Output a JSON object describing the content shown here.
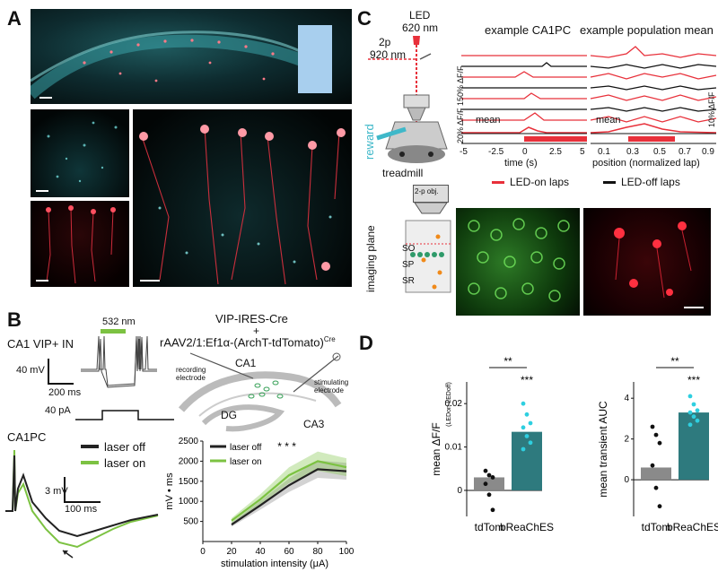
{
  "panels": {
    "a": {
      "letter": "A"
    },
    "b": {
      "letter": "B"
    },
    "c": {
      "letter": "C"
    },
    "d": {
      "letter": "D"
    }
  },
  "panel_b": {
    "trace_title": "CA1 VIP+ IN",
    "light_label": "532 nm",
    "scale_v": "40 mV",
    "scale_t": "200 ms",
    "current_label": "40 pA",
    "construct_line1": "VIP-IRES-Cre",
    "construct_plus": "+",
    "construct_line2": "rAAV2/1:Ef1α-(ArchT-tdTomato)",
    "construct_sup": "Cre",
    "region_ca1": "CA1",
    "region_dg": "DG",
    "region_ca3": "CA3",
    "recording_electrode": "recording electrode",
    "stimulating_electrode": "stimulating electrode",
    "ca1pc_label": "CA1PC",
    "legend": [
      "laser off",
      "laser on"
    ],
    "scale_v2": "3 mV",
    "scale_t2": "100 ms",
    "colors": {
      "off": "#222222",
      "on": "#7cc242"
    }
  },
  "panel_c": {
    "led_label": "LED",
    "led_nm": "620 nm",
    "twop_label": "2p",
    "twop_nm": "920 nm",
    "reward_label": "reward",
    "treadmill_label": "treadmill",
    "objective_label": "2-p obj.",
    "imaging_plane_label": "imaging plane",
    "layers": [
      "SO",
      "SP",
      "SR"
    ],
    "example_ca1pc_title": "example CA1PC",
    "example_pop_title": "example population mean",
    "mean_label": "mean",
    "scale_150": "150% ΔF/F",
    "scale_20": "20% ΔF/F",
    "scale_10": "10% ΔF/F",
    "time_ticks": [
      "-5",
      "-2.5",
      "0",
      "2.5",
      "5"
    ],
    "time_xlabel": "time (s)",
    "pos_ticks": [
      "0.1",
      "0.3",
      "0.5",
      "0.7",
      "0.9"
    ],
    "pos_xlabel": "position (normalized lap)",
    "legend": [
      "LED-on laps",
      "LED-off laps"
    ],
    "colors": {
      "on": "#e8303a",
      "off": "#111111",
      "reward": "#3fb8c9"
    }
  },
  "chart_data": [
    {
      "type": "line",
      "xlabel": "stimulation intensity (μA)",
      "ylabel": "mV • ms",
      "x": [
        20,
        40,
        60,
        80,
        100
      ],
      "xlim": [
        0,
        100
      ],
      "ylim": [
        0,
        2500
      ],
      "xticks": [
        "0",
        "20",
        "40",
        "60",
        "80",
        "100"
      ],
      "yticks": [
        "500",
        "1000",
        "1500",
        "2000",
        "2500"
      ],
      "annotation": "* * *",
      "legend_position": "top-left",
      "series": [
        {
          "name": "laser off",
          "values": [
            420,
            900,
            1400,
            1800,
            1750
          ],
          "color": "#222222"
        },
        {
          "name": "laser on",
          "values": [
            520,
            1050,
            1650,
            2000,
            1850
          ],
          "color": "#7cc242"
        }
      ]
    },
    {
      "type": "bar",
      "ylabel": "mean ΔF/F",
      "ylabel_sub": "(LEDon-LEDoff)",
      "categories": [
        "tdTom",
        "bReaChES"
      ],
      "values": [
        0.003,
        0.0135
      ],
      "ylim": [
        -0.006,
        0.025
      ],
      "yticks": [
        "0",
        "0.01",
        "0.02"
      ],
      "colors": [
        "#8a8a8a",
        "#2e7a7e"
      ],
      "sig_between": "**",
      "sig_single": "***",
      "points": [
        [
          0.0045,
          0.0035,
          0.003,
          0.0015,
          -0.001,
          -0.0045
        ],
        [
          0.02,
          0.0175,
          0.0155,
          0.0145,
          0.0125,
          0.011,
          0.0095
        ]
      ]
    },
    {
      "type": "bar",
      "ylabel": "mean transient AUC",
      "categories": [
        "tdTom",
        "bReaChES"
      ],
      "values": [
        0.6,
        3.3
      ],
      "ylim": [
        -1.8,
        4.8
      ],
      "yticks": [
        "0",
        "2",
        "4"
      ],
      "colors": [
        "#8a8a8a",
        "#2e7a7e"
      ],
      "sig_between": "**",
      "sig_single": "***",
      "points": [
        [
          2.6,
          2.2,
          1.8,
          0.7,
          -0.4,
          -1.3
        ],
        [
          4.1,
          3.7,
          3.4,
          3.3,
          3.1,
          2.9,
          2.7
        ]
      ]
    }
  ]
}
